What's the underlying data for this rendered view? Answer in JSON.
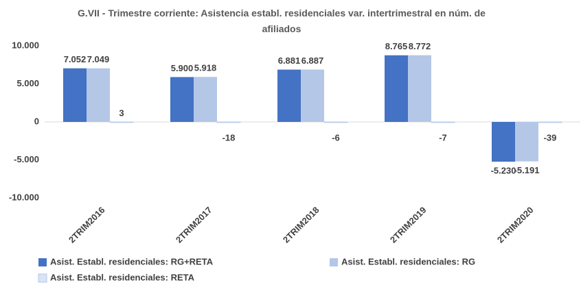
{
  "chart_data": {
    "type": "bar",
    "title": "G.VII - Trimestre corriente: Asistencia establ. residenciales var. intertrimestral en núm. de afiliados",
    "categories": [
      "2TRIM2016",
      "2TRIM2017",
      "2TRIM2018",
      "2TRIM2019",
      "2TRIM2020"
    ],
    "series": [
      {
        "name": "Asist. Establ. residenciales: RG+RETA",
        "color": "#4472c4",
        "values": [
          7052,
          5900,
          6881,
          8765,
          -5230
        ],
        "value_labels": [
          "7.052",
          "5.900",
          "6.881",
          "8.765",
          "-5.230"
        ]
      },
      {
        "name": "Asist. Establ. residenciales: RG",
        "color": "#b4c7e7",
        "values": [
          7049,
          5918,
          6887,
          8772,
          -5191
        ],
        "value_labels": [
          "7.049",
          "5.918",
          "6.887",
          "8.772",
          "-5.191"
        ]
      },
      {
        "name": "Asist. Establ. residenciales: RETA",
        "color": "#dae3f3",
        "values": [
          3,
          -18,
          -6,
          -7,
          -39
        ]
      }
    ],
    "ylim": [
      -10000,
      10000
    ],
    "yticks": [
      {
        "value": -10000,
        "label": "-10.000"
      },
      {
        "value": -5000,
        "label": "-5.000"
      },
      0,
      {
        "value": 5000,
        "label": "5.000"
      },
      {
        "value": 10000,
        "label": "10.000"
      }
    ],
    "legend": "bottom",
    "grid": false
  }
}
